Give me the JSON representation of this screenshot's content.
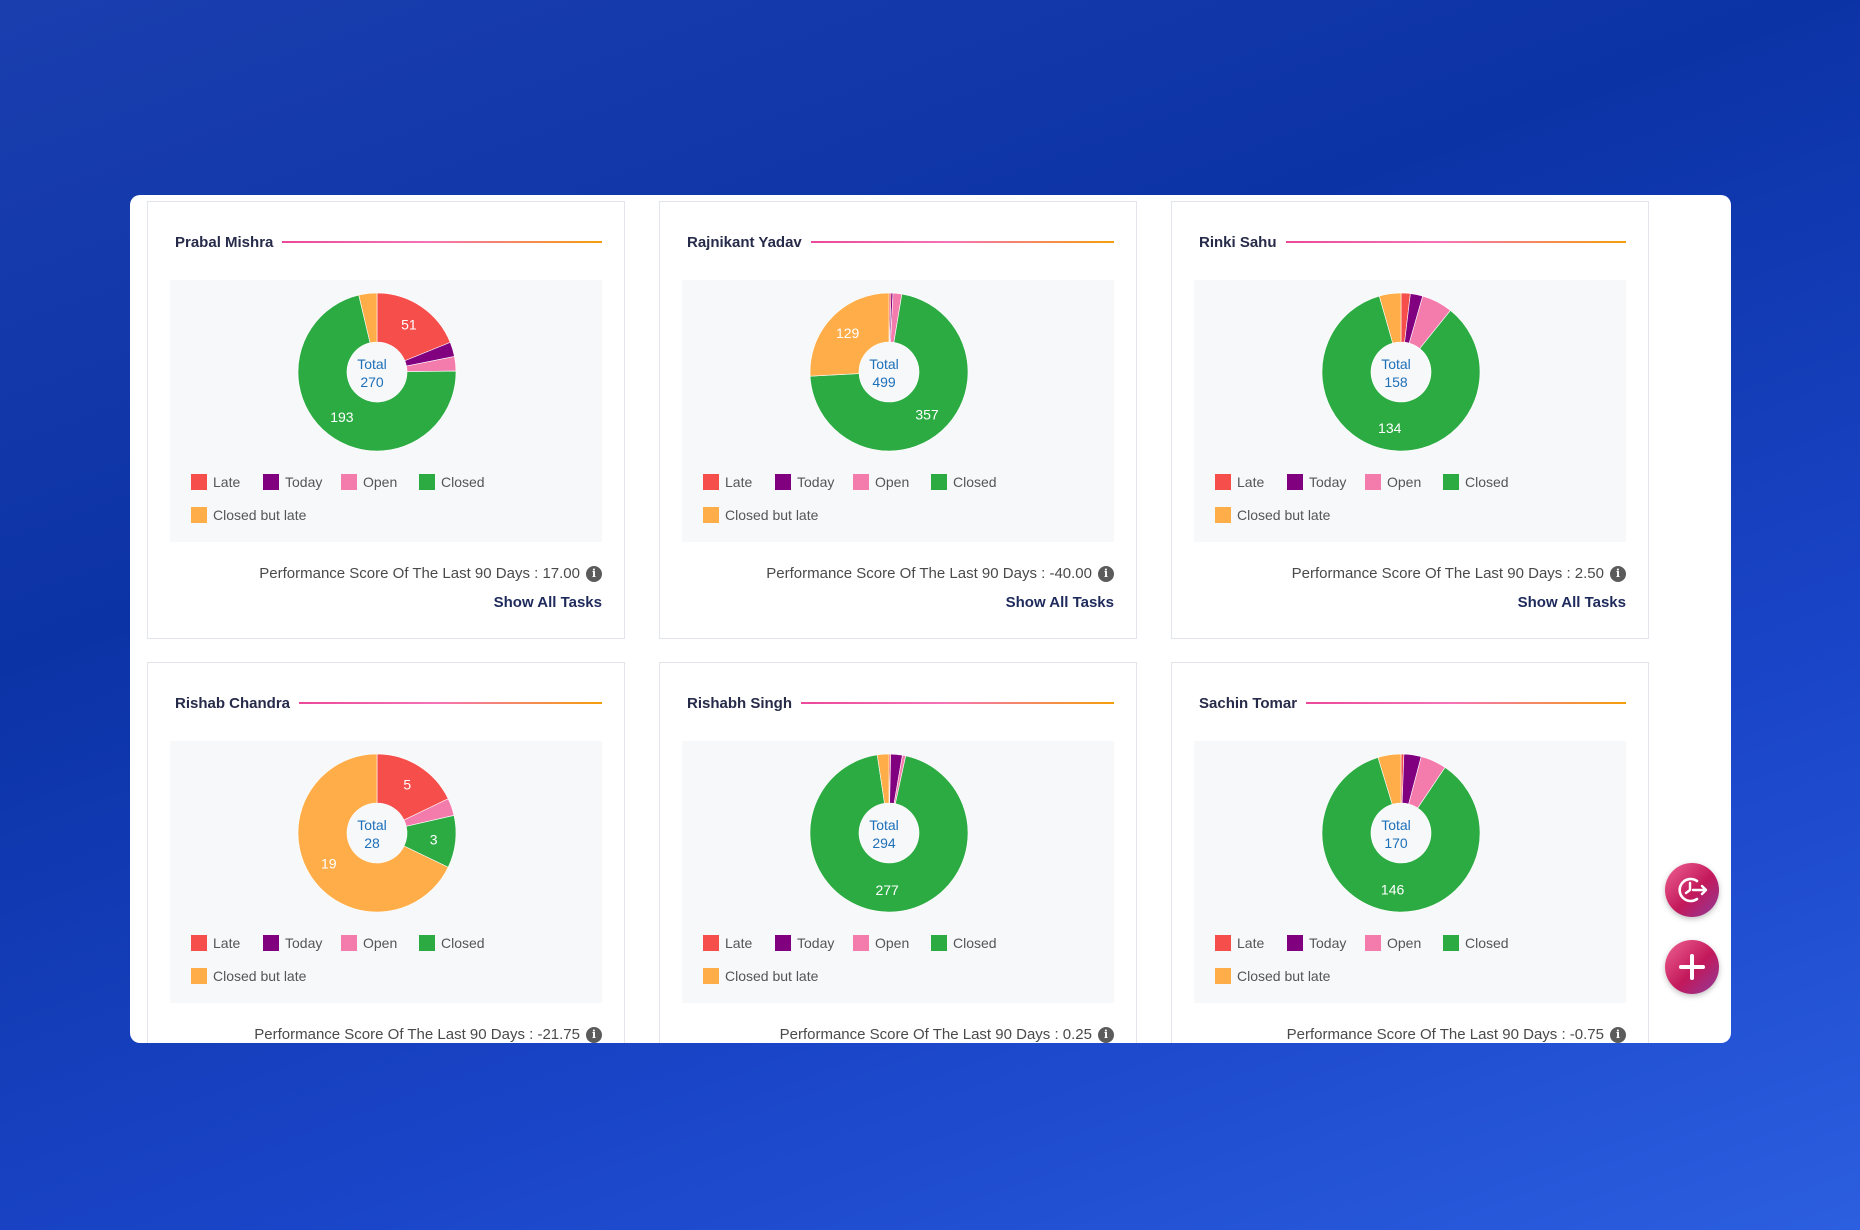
{
  "legend": {
    "late": "Late",
    "today": "Today",
    "open": "Open",
    "closed": "Closed",
    "closed_but_late": "Closed but late"
  },
  "colors": {
    "late": "#f64e4a",
    "today": "#800080",
    "open": "#f47cad",
    "closed": "#2bab42",
    "closed_but_late": "#ffad48"
  },
  "score_prefix": "Performance Score Of The Last 90 Days : ",
  "show_all_label": "Show All Tasks",
  "total_label": "Total",
  "cards": [
    {
      "name": "Prabal Mishra",
      "total": "270",
      "score": "17.00",
      "values": {
        "late": 51,
        "today": 8,
        "open": 8,
        "closed": 193,
        "closed_but_late": 10
      },
      "labels": {
        "late": "51",
        "closed": "193"
      }
    },
    {
      "name": "Rajnikant Yadav",
      "total": "499",
      "score": "-40.00",
      "values": {
        "late": 2,
        "today": 2,
        "open": 9,
        "closed": 357,
        "closed_but_late": 129
      },
      "labels": {
        "closed": "357",
        "closed_but_late": "129"
      }
    },
    {
      "name": "Rinki Sahu",
      "total": "158",
      "score": "2.50",
      "values": {
        "late": 3,
        "today": 4,
        "open": 10,
        "closed": 134,
        "closed_but_late": 7
      },
      "labels": {
        "closed": "134"
      }
    },
    {
      "name": "Rishab Chandra",
      "total": "28",
      "score": "-21.75",
      "values": {
        "late": 5,
        "today": 0,
        "open": 1,
        "closed": 3,
        "closed_but_late": 19
      },
      "labels": {
        "late": "5",
        "closed": "3",
        "closed_but_late": "19"
      }
    },
    {
      "name": "Rishabh Singh",
      "total": "294",
      "score": "0.25",
      "values": {
        "late": 1,
        "today": 7,
        "open": 2,
        "closed": 277,
        "closed_but_late": 7
      },
      "labels": {
        "closed": "277"
      }
    },
    {
      "name": "Sachin Tomar",
      "total": "170",
      "score": "-0.75",
      "values": {
        "late": 1,
        "today": 6,
        "open": 9,
        "closed": 146,
        "closed_but_late": 8
      },
      "labels": {
        "closed": "146"
      }
    }
  ]
}
